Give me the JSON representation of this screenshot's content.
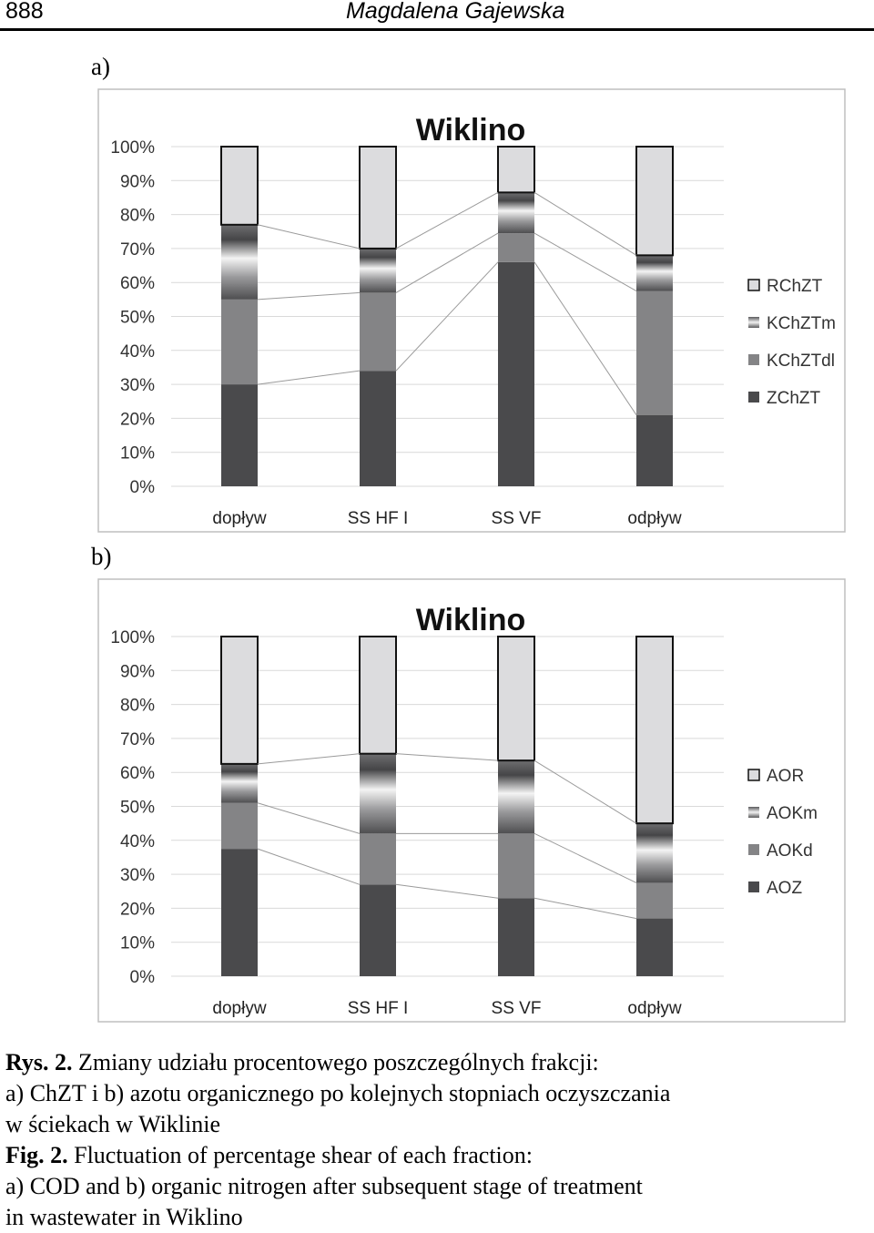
{
  "header": {
    "page_number": "888",
    "author": "Magdalena Gajewska"
  },
  "colors": {
    "dark": "#4a4a4c",
    "mid": "#848486",
    "light": "#dcdcde",
    "border": "#bfbfbf",
    "grid": "#d9d9d9"
  },
  "chart_data": [
    {
      "panel": "a)",
      "type": "bar",
      "stacked": true,
      "title": "Wiklino",
      "categories": [
        "dopływ",
        "SS HF I",
        "SS VF",
        "odpływ"
      ],
      "y_ticks": [
        "0%",
        "10%",
        "20%",
        "30%",
        "40%",
        "50%",
        "60%",
        "70%",
        "80%",
        "90%",
        "100%"
      ],
      "ylim": [
        0,
        100
      ],
      "grid": true,
      "legend_position": "right",
      "series": [
        {
          "name": "ZChZT",
          "style": "dark",
          "values": [
            30,
            34,
            66,
            21
          ]
        },
        {
          "name": "KChZTdl",
          "style": "mid",
          "values": [
            25,
            23,
            8.5,
            36.5
          ]
        },
        {
          "name": "KChZTm",
          "style": "gradient",
          "values": [
            22,
            13,
            12,
            10.5
          ]
        },
        {
          "name": "RChZT",
          "style": "light",
          "values": [
            23,
            30,
            13.5,
            32
          ]
        }
      ],
      "legend": [
        "RChZT",
        "KChZTm",
        "KChZTdl",
        "ZChZT"
      ]
    },
    {
      "panel": "b)",
      "type": "bar",
      "stacked": true,
      "title": "Wiklino",
      "categories": [
        "dopływ",
        "SS HF I",
        "SS VF",
        "odpływ"
      ],
      "y_ticks": [
        "0%",
        "10%",
        "20%",
        "30%",
        "40%",
        "50%",
        "60%",
        "70%",
        "80%",
        "90%",
        "100%"
      ],
      "ylim": [
        0,
        100
      ],
      "grid": true,
      "legend_position": "right",
      "series": [
        {
          "name": "AOZ",
          "style": "dark",
          "values": [
            37.5,
            27,
            23,
            17
          ]
        },
        {
          "name": "AOKd",
          "style": "mid",
          "values": [
            13.5,
            15,
            19,
            10.5
          ]
        },
        {
          "name": "AOKm",
          "style": "gradient",
          "values": [
            11.5,
            23.5,
            21.5,
            17.5
          ]
        },
        {
          "name": "AOR",
          "style": "light",
          "values": [
            37.5,
            34.5,
            36.5,
            55
          ]
        }
      ],
      "legend": [
        "AOR",
        "AOKm",
        "AOKd",
        "AOZ"
      ]
    }
  ],
  "caption": {
    "rys_label": "Rys. 2.",
    "rys_line1": " Zmiany udziału procentowego poszczególnych frakcji:",
    "rys_line2": "a) ChZT i b) azotu organicznego po kolejnych stopniach oczyszczania",
    "rys_line3": "w ściekach w Wiklinie",
    "fig_label": "Fig. 2.",
    "fig_line1": " Fluctuation of percentage shear of each fraction:",
    "fig_line2": "a) COD and b) organic nitrogen after subsequent stage of treatment",
    "fig_line3": "in wastewater in Wiklino"
  }
}
